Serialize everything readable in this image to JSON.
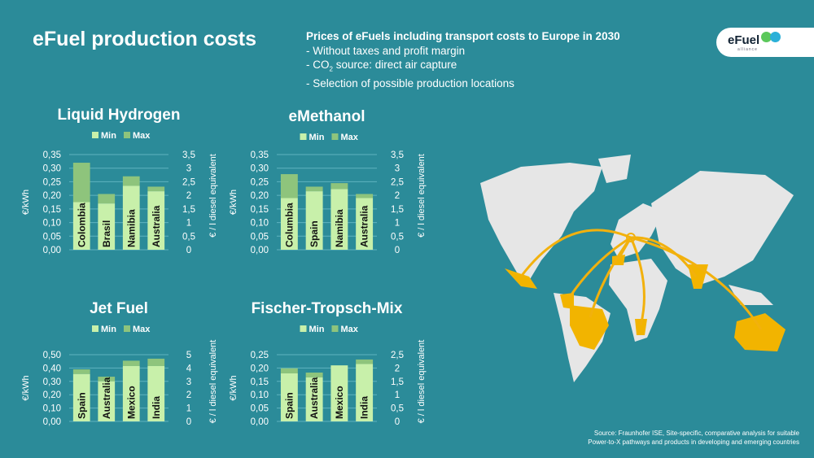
{
  "header": {
    "title": "eFuel production costs",
    "subtitle": "Prices of eFuels including transport costs to Europe in 2030",
    "bullets": [
      "- Without taxes and profit margin",
      "- CO",
      "2",
      " source: direct air capture",
      "- Selection of possible production locations"
    ],
    "logo_text": "eFuel",
    "logo_sub": "alliance"
  },
  "source": [
    "Source: Fraunhofer ISE, Site-specific, comparative analysis for suitable",
    "Power-to-X pathways and products in developing and emerging countries"
  ],
  "colors": {
    "background": "#2b8b99",
    "min": "#c8f0aa",
    "max": "#8ec47c",
    "map_land": "#e6e6e6",
    "map_highlight": "#f2b400",
    "arrow": "#f2b10d"
  },
  "chart_data": [
    {
      "type": "bar",
      "stacked": true,
      "title": "Liquid Hydrogen",
      "legend": [
        "Min",
        "Max"
      ],
      "legend_position": "top",
      "ylabel": "€/kWh",
      "y2label": "€ / l diesel equivalent",
      "ylim": [
        0,
        0.35
      ],
      "yticks": [
        "0,00",
        "0,05",
        "0,10",
        "0,15",
        "0,20",
        "0,25",
        "0,30",
        "0,35"
      ],
      "y2ticks": [
        "0",
        "0,5",
        "1",
        "1,5",
        "2",
        "2,5",
        "3",
        "3,5"
      ],
      "grid": true,
      "categories": [
        "Colombia",
        "Brasil",
        "Namibia",
        "Australia"
      ],
      "series": [
        {
          "name": "Min",
          "values": [
            0.175,
            0.17,
            0.235,
            0.215
          ]
        },
        {
          "name": "Max",
          "values": [
            0.32,
            0.205,
            0.27,
            0.232
          ]
        }
      ]
    },
    {
      "type": "bar",
      "stacked": true,
      "title": "eMethanol",
      "legend": [
        "Min",
        "Max"
      ],
      "legend_position": "top",
      "ylabel": "€/kWh",
      "y2label": "€ / l diesel equivalent",
      "ylim": [
        0,
        0.35
      ],
      "yticks": [
        "0,00",
        "0,05",
        "0,10",
        "0,15",
        "0,20",
        "0,25",
        "0,30",
        "0,35"
      ],
      "y2ticks": [
        "0",
        "0,5",
        "1",
        "1,5",
        "2",
        "2,5",
        "3",
        "3,5"
      ],
      "grid": true,
      "categories": [
        "Columbia",
        "Spain",
        "Namibia",
        "Australia"
      ],
      "series": [
        {
          "name": "Min",
          "values": [
            0.19,
            0.215,
            0.223,
            0.19
          ]
        },
        {
          "name": "Max",
          "values": [
            0.278,
            0.232,
            0.245,
            0.205
          ]
        }
      ]
    },
    {
      "type": "bar",
      "stacked": true,
      "title": "Jet Fuel",
      "legend": [
        "Min",
        "Max"
      ],
      "legend_position": "top",
      "ylabel": "€/kWh",
      "y2label": "€ / l diesel equivalent",
      "ylim": [
        0,
        0.5
      ],
      "yticks": [
        "0,00",
        "0,10",
        "0,20",
        "0,30",
        "0,40",
        "0,50"
      ],
      "y2ticks": [
        "0",
        "1",
        "2",
        "3",
        "4",
        "5"
      ],
      "grid": true,
      "categories": [
        "Spain",
        "Australia",
        "Mexico",
        "India"
      ],
      "series": [
        {
          "name": "Min",
          "values": [
            0.355,
            0.3,
            0.415,
            0.415
          ]
        },
        {
          "name": "Max",
          "values": [
            0.39,
            0.335,
            0.455,
            0.47
          ]
        }
      ]
    },
    {
      "type": "bar",
      "stacked": true,
      "title": "Fischer-Tropsch-Mix",
      "legend": [
        "Min",
        "Max"
      ],
      "legend_position": "top",
      "ylabel": "€/kWh",
      "y2label": "€ / l diesel equivalent",
      "ylim": [
        0,
        0.25
      ],
      "yticks": [
        "0,00",
        "0,05",
        "0,10",
        "0,15",
        "0,20",
        "0,25"
      ],
      "y2ticks": [
        "0",
        "0,5",
        "1",
        "1,5",
        "2",
        "2,5"
      ],
      "grid": true,
      "categories": [
        "Spain",
        "Australia",
        "Mexico",
        "India"
      ],
      "series": [
        {
          "name": "Min",
          "values": [
            0.18,
            0.165,
            0.21,
            0.215
          ]
        },
        {
          "name": "Max",
          "values": [
            0.199,
            0.183,
            0.21,
            0.232
          ]
        }
      ]
    }
  ]
}
